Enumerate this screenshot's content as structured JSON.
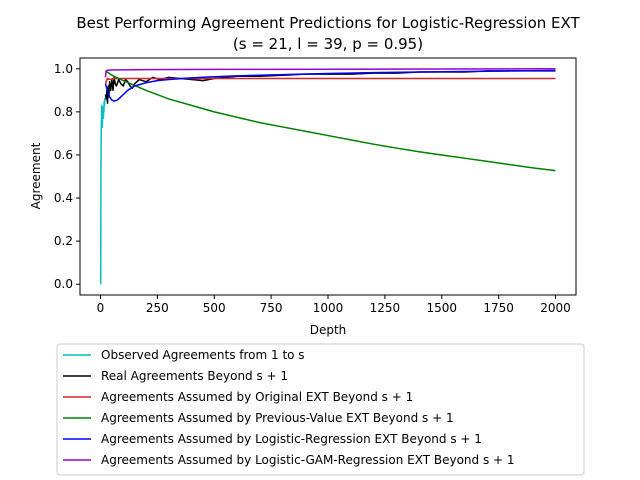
{
  "chart_data": {
    "type": "line",
    "title": "Best Performing Agreement Predictions for Logistic-Regression EXT",
    "subtitle": "(s = 21, l = 39, p = 0.95)",
    "xlabel": "Depth",
    "ylabel": "Agreement",
    "xlim": [
      -90,
      2090
    ],
    "ylim": [
      -0.05,
      1.05
    ],
    "xticks": [
      0,
      250,
      500,
      750,
      1000,
      1250,
      1500,
      1750,
      2000
    ],
    "yticks": [
      0.0,
      0.2,
      0.4,
      0.6,
      0.8,
      1.0
    ],
    "ytick_labels": [
      "0.0",
      "0.2",
      "0.4",
      "0.6",
      "0.8",
      "1.0"
    ],
    "grid": false,
    "legend_position": "bottom",
    "series": [
      {
        "name": "Observed Agreements from 1 to s",
        "color": "#00bfbf",
        "x": [
          1,
          2,
          3,
          4,
          5,
          6,
          7,
          8,
          9,
          10,
          11,
          12,
          13,
          14,
          15,
          16,
          17,
          18,
          19,
          20,
          21
        ],
        "y": [
          0.0,
          0.5,
          0.67,
          0.75,
          0.8,
          0.83,
          0.76,
          0.73,
          0.78,
          0.8,
          0.82,
          0.8,
          0.77,
          0.82,
          0.8,
          0.84,
          0.85,
          0.83,
          0.86,
          0.85,
          0.86
        ]
      },
      {
        "name": "Real Agreements Beyond s + 1",
        "color": "#000000",
        "x": [
          22,
          25,
          28,
          31,
          34,
          37,
          40,
          45,
          50,
          55,
          60,
          65,
          70,
          80,
          90,
          100,
          110,
          120,
          130,
          140,
          150,
          170,
          200,
          230,
          260,
          300,
          350,
          400,
          450,
          500,
          550,
          600,
          700,
          800,
          900,
          1000,
          1100,
          1200,
          1300,
          1400,
          1500,
          1600,
          1700,
          1800,
          1900,
          2000
        ],
        "y": [
          0.88,
          0.86,
          0.9,
          0.84,
          0.92,
          0.87,
          0.94,
          0.9,
          0.95,
          0.9,
          0.96,
          0.93,
          0.92,
          0.95,
          0.93,
          0.92,
          0.95,
          0.94,
          0.92,
          0.91,
          0.93,
          0.95,
          0.94,
          0.96,
          0.95,
          0.96,
          0.955,
          0.95,
          0.945,
          0.955,
          0.96,
          0.965,
          0.965,
          0.97,
          0.975,
          0.975,
          0.975,
          0.98,
          0.98,
          0.985,
          0.985,
          0.985,
          0.99,
          0.99,
          0.99,
          0.99
        ]
      },
      {
        "name": "Agreements Assumed by Original EXT Beyond s + 1",
        "color": "#d62728",
        "x": [
          22,
          30,
          40,
          60,
          100,
          150,
          300,
          500,
          1000,
          1500,
          2000
        ],
        "y": [
          0.93,
          0.955,
          0.95,
          0.955,
          0.955,
          0.955,
          0.955,
          0.955,
          0.955,
          0.955,
          0.955
        ]
      },
      {
        "name": "Agreements Assumed by Previous-Value EXT Beyond s + 1",
        "color": "#008000",
        "x": [
          22,
          50,
          100,
          200,
          300,
          400,
          500,
          600,
          700,
          800,
          900,
          1000,
          1100,
          1200,
          1300,
          1400,
          1500,
          1600,
          1700,
          1800,
          1900,
          2000
        ],
        "y": [
          0.99,
          0.97,
          0.945,
          0.9,
          0.86,
          0.83,
          0.8,
          0.775,
          0.75,
          0.73,
          0.71,
          0.69,
          0.67,
          0.65,
          0.632,
          0.615,
          0.6,
          0.585,
          0.57,
          0.555,
          0.54,
          0.527
        ]
      },
      {
        "name": "Agreements Assumed by Logistic-Regression EXT Beyond s + 1",
        "color": "#0000ff",
        "x": [
          22,
          30,
          40,
          50,
          60,
          70,
          80,
          90,
          100,
          120,
          150,
          200,
          250,
          300,
          400,
          500,
          600,
          800,
          1000,
          1200,
          1500,
          1800,
          2000
        ],
        "y": [
          0.93,
          0.9,
          0.87,
          0.855,
          0.85,
          0.853,
          0.86,
          0.87,
          0.88,
          0.9,
          0.92,
          0.935,
          0.945,
          0.95,
          0.958,
          0.963,
          0.967,
          0.973,
          0.978,
          0.982,
          0.986,
          0.99,
          0.992
        ]
      },
      {
        "name": "Agreements Assumed by Logistic-GAM-Regression EXT Beyond s + 1",
        "color": "#9400d3",
        "x": [
          22,
          25,
          30,
          40,
          60,
          100,
          200,
          500,
          1000,
          1500,
          2000
        ],
        "y": [
          0.96,
          0.99,
          0.993,
          0.994,
          0.995,
          0.995,
          0.996,
          0.997,
          0.998,
          0.999,
          1.0
        ]
      }
    ]
  }
}
